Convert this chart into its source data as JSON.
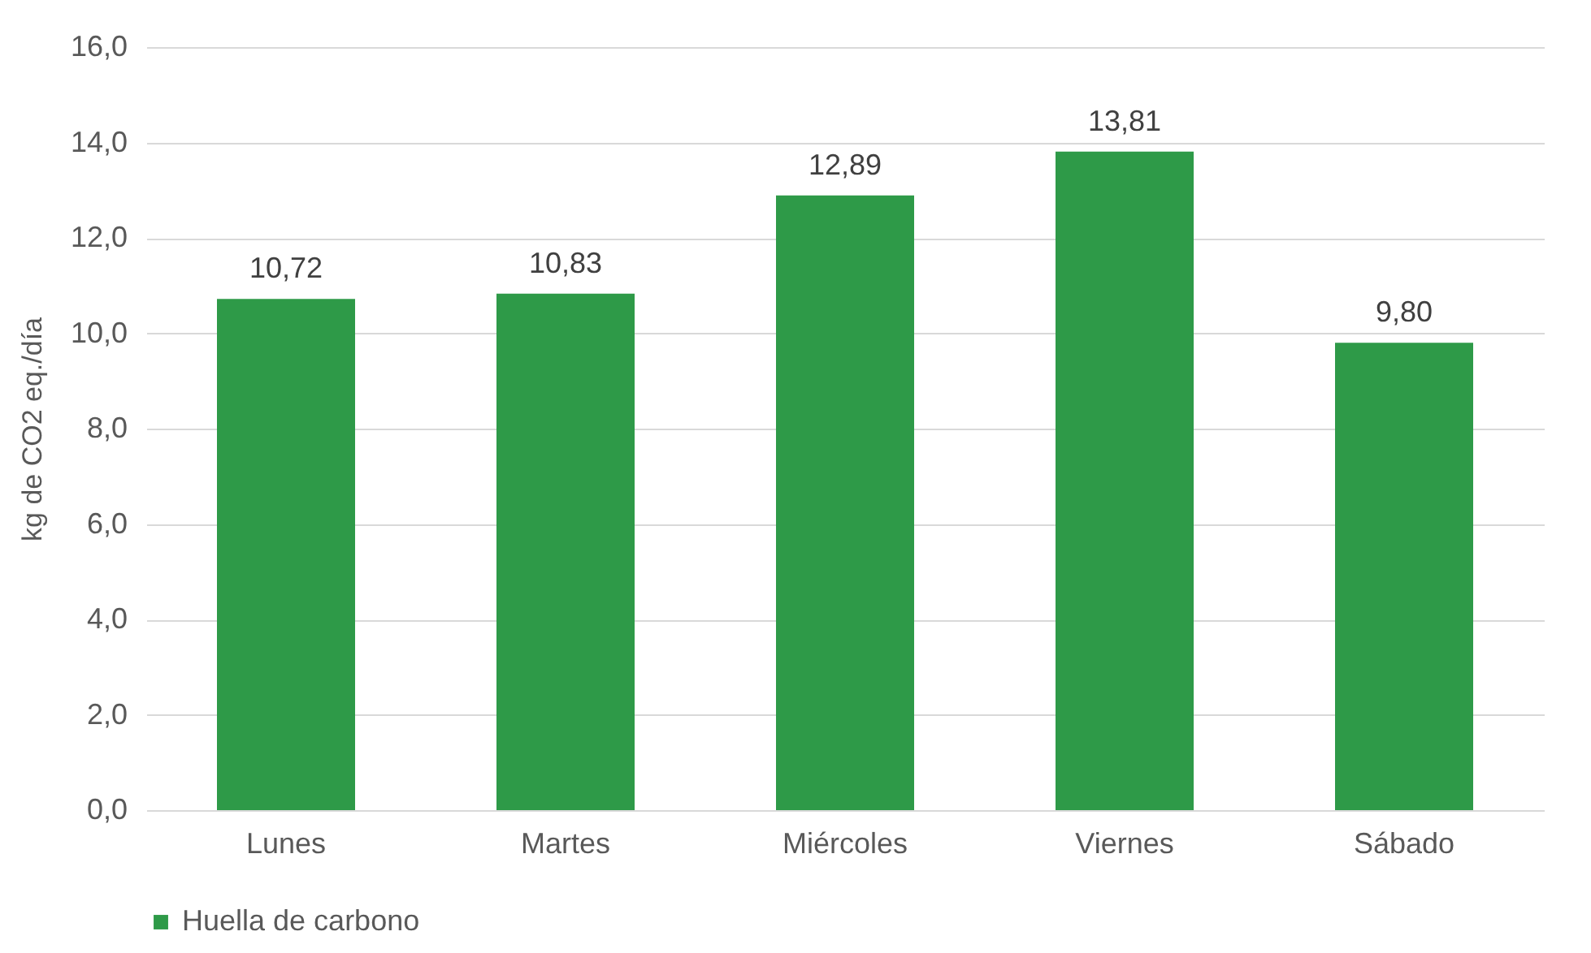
{
  "chart_data": {
    "type": "bar",
    "ylabel": "kg de CO2 eq./día",
    "categories": [
      "Lunes",
      "Martes",
      "Miércoles",
      "Viernes",
      "Sábado"
    ],
    "series": [
      {
        "name": "Huella de carbono",
        "color": "#2e9a48",
        "values": [
          10.72,
          10.83,
          12.89,
          13.81,
          9.8
        ],
        "value_labels": [
          "10,72",
          "10,83",
          "12,89",
          "13,81",
          "9,80"
        ]
      }
    ],
    "ylim": [
      0,
      16
    ],
    "yticks": [
      {
        "value": 0,
        "label": "0,0"
      },
      {
        "value": 2,
        "label": "2,0"
      },
      {
        "value": 4,
        "label": "4,0"
      },
      {
        "value": 6,
        "label": "6,0"
      },
      {
        "value": 8,
        "label": "8,0"
      },
      {
        "value": 10,
        "label": "10,0"
      },
      {
        "value": 12,
        "label": "12,0"
      },
      {
        "value": 14,
        "label": "14,0"
      },
      {
        "value": 16,
        "label": "16,0"
      }
    ],
    "grid": "y",
    "legend": "bottom"
  }
}
